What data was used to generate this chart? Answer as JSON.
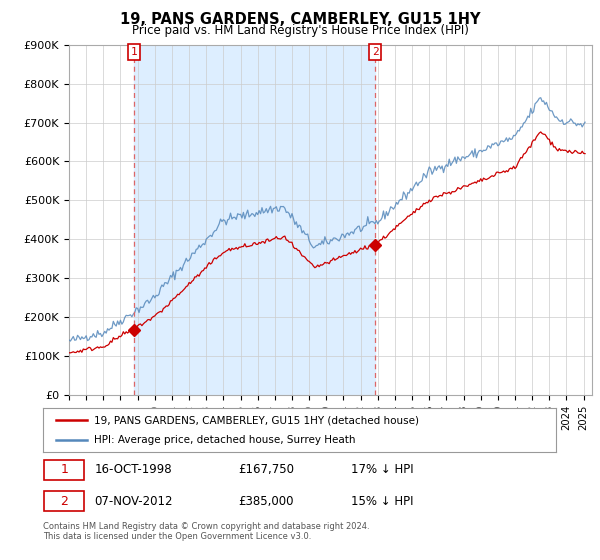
{
  "title": "19, PANS GARDENS, CAMBERLEY, GU15 1HY",
  "subtitle": "Price paid vs. HM Land Registry's House Price Index (HPI)",
  "ylabel_ticks": [
    "£0",
    "£100K",
    "£200K",
    "£300K",
    "£400K",
    "£500K",
    "£600K",
    "£700K",
    "£800K",
    "£900K"
  ],
  "ytick_values": [
    0,
    100000,
    200000,
    300000,
    400000,
    500000,
    600000,
    700000,
    800000,
    900000
  ],
  "ylim": [
    0,
    900000
  ],
  "xlim_start": 1995,
  "xlim_end": 2025.5,
  "legend_line1": "19, PANS GARDENS, CAMBERLEY, GU15 1HY (detached house)",
  "legend_line2": "HPI: Average price, detached house, Surrey Heath",
  "purchase1_date": "16-OCT-1998",
  "purchase1_price": "£167,750",
  "purchase1_hpi": "17% ↓ HPI",
  "purchase1_year": 1998.79,
  "purchase1_value": 167750,
  "purchase2_date": "07-NOV-2012",
  "purchase2_price": "£385,000",
  "purchase2_hpi": "15% ↓ HPI",
  "purchase2_year": 2012.85,
  "purchase2_value": 385000,
  "footer": "Contains HM Land Registry data © Crown copyright and database right 2024.\nThis data is licensed under the Open Government Licence v3.0.",
  "line_color_red": "#cc0000",
  "line_color_blue": "#5588bb",
  "shade_color": "#ddeeff",
  "vline_color": "#dd6666",
  "background_color": "#ffffff",
  "grid_color": "#cccccc"
}
